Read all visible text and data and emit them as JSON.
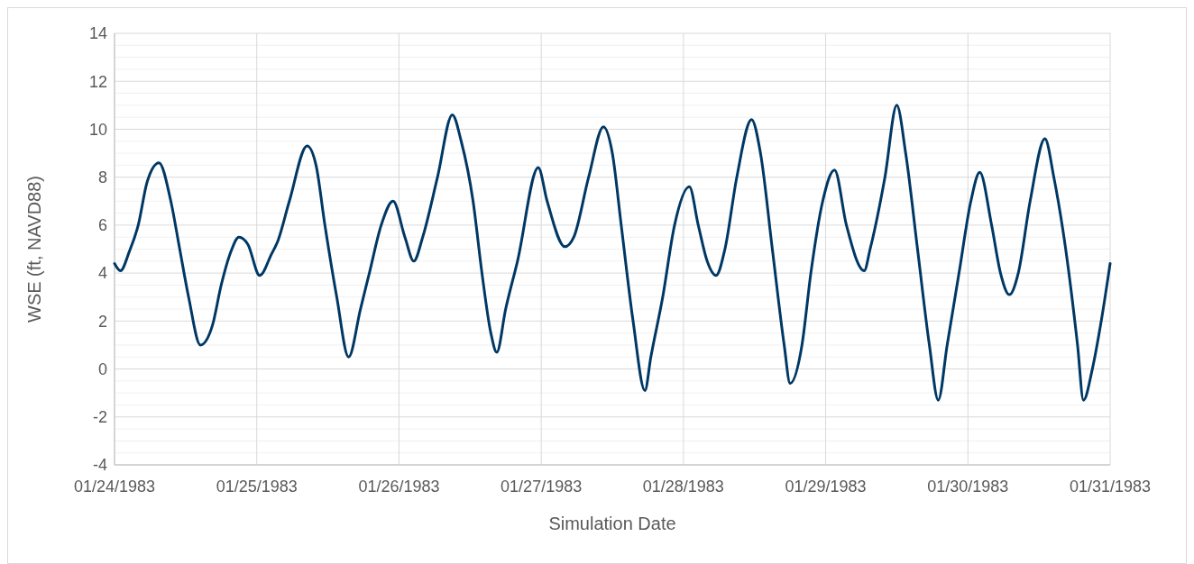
{
  "chart_data": {
    "type": "line",
    "xlabel": "Simulation Date",
    "ylabel": "WSE (ft, NAVD88)",
    "x": [
      "1983-01-24T00:00",
      "1983-01-24T01:00",
      "1983-01-24T02:30",
      "1983-01-24T04:00",
      "1983-01-24T05:30",
      "1983-01-24T07:30",
      "1983-01-24T09:30",
      "1983-01-24T11:00",
      "1983-01-24T12:30",
      "1983-01-24T14:30",
      "1983-01-24T16:30",
      "1983-01-24T18:00",
      "1983-01-24T19:30",
      "1983-01-24T21:00",
      "1983-01-24T22:30",
      "1983-01-25T00:30",
      "1983-01-25T02:30",
      "1983-01-25T03:30",
      "1983-01-25T05:30",
      "1983-01-25T08:30",
      "1983-01-25T10:00",
      "1983-01-25T11:30",
      "1983-01-25T13:30",
      "1983-01-25T15:30",
      "1983-01-25T17:30",
      "1983-01-25T19:00",
      "1983-01-25T21:00",
      "1983-01-25T23:00",
      "1983-01-26T01:00",
      "1983-01-26T02:30",
      "1983-01-26T04:00",
      "1983-01-26T06:30",
      "1983-01-26T09:00",
      "1983-01-26T10:30",
      "1983-01-26T12:30",
      "1983-01-26T14:00",
      "1983-01-26T15:30",
      "1983-01-26T16:30",
      "1983-01-26T18:00",
      "1983-01-26T20:00",
      "1983-01-26T23:30",
      "1983-01-27T01:00",
      "1983-01-27T04:00",
      "1983-01-27T05:30",
      "1983-01-27T08:00",
      "1983-01-27T10:30",
      "1983-01-27T12:00",
      "1983-01-27T13:30",
      "1983-01-27T15:30",
      "1983-01-27T17:30",
      "1983-01-27T18:30",
      "1983-01-27T20:30",
      "1983-01-27T22:30",
      "1983-01-28T01:00",
      "1983-01-28T02:30",
      "1983-01-28T04:00",
      "1983-01-28T05:30",
      "1983-01-28T07:00",
      "1983-01-28T09:00",
      "1983-01-28T11:30",
      "1983-01-28T13:00",
      "1983-01-28T15:00",
      "1983-01-28T17:00",
      "1983-01-28T18:00",
      "1983-01-28T20:00",
      "1983-01-28T21:30",
      "1983-01-28T23:30",
      "1983-01-29T01:30",
      "1983-01-29T03:30",
      "1983-01-29T06:30",
      "1983-01-29T07:30",
      "1983-01-29T10:00",
      "1983-01-29T12:00",
      "1983-01-29T13:30",
      "1983-01-29T15:30",
      "1983-01-29T17:30",
      "1983-01-29T19:00",
      "1983-01-29T20:30",
      "1983-01-29T22:30",
      "1983-01-30T00:30",
      "1983-01-30T02:00",
      "1983-01-30T04:00",
      "1983-01-30T05:30",
      "1983-01-30T07:00",
      "1983-01-30T08:30",
      "1983-01-30T10:30",
      "1983-01-30T13:00",
      "1983-01-30T14:30",
      "1983-01-30T16:30",
      "1983-01-30T18:30",
      "1983-01-30T19:30",
      "1983-01-30T21:00",
      "1983-01-30T22:30",
      "1983-01-31T00:00"
    ],
    "series": [
      {
        "color": "#003865",
        "values": [
          4.4,
          4.1,
          4.9,
          6.0,
          7.8,
          8.6,
          7.0,
          5.0,
          3.0,
          1.0,
          1.8,
          3.5,
          4.8,
          5.5,
          5.2,
          3.9,
          4.8,
          5.3,
          7.0,
          9.3,
          8.5,
          6.0,
          3.0,
          0.5,
          2.5,
          4.0,
          6.0,
          7.0,
          5.5,
          4.5,
          5.5,
          8.0,
          10.6,
          9.5,
          7.0,
          4.0,
          1.5,
          0.7,
          2.5,
          4.5,
          8.4,
          7.0,
          5.1,
          5.5,
          8.0,
          10.1,
          9.0,
          6.0,
          2.0,
          -0.9,
          0.5,
          3.0,
          6.0,
          7.6,
          6.0,
          4.5,
          3.9,
          5.0,
          8.0,
          10.4,
          9.0,
          5.0,
          1.0,
          -0.6,
          1.0,
          4.0,
          7.0,
          8.3,
          6.0,
          4.1,
          5.0,
          8.0,
          11.0,
          9.0,
          5.0,
          1.0,
          -1.3,
          1.0,
          4.0,
          7.0,
          8.2,
          6.0,
          4.0,
          3.1,
          4.0,
          7.0,
          9.6,
          8.0,
          5.0,
          1.0,
          -1.3,
          0.0,
          2.0,
          4.4
        ]
      }
    ],
    "xlim": [
      "1983-01-24",
      "1983-01-31"
    ],
    "xticks": [
      {
        "value": "1983-01-24",
        "label": "01/24/1983"
      },
      {
        "value": "1983-01-25",
        "label": "01/25/1983"
      },
      {
        "value": "1983-01-26",
        "label": "01/26/1983"
      },
      {
        "value": "1983-01-27",
        "label": "01/27/1983"
      },
      {
        "value": "1983-01-28",
        "label": "01/28/1983"
      },
      {
        "value": "1983-01-29",
        "label": "01/29/1983"
      },
      {
        "value": "1983-01-30",
        "label": "01/30/1983"
      },
      {
        "value": "1983-01-31",
        "label": "01/31/1983"
      }
    ],
    "ylim": [
      -4,
      14
    ],
    "yticks": [
      -4,
      -2,
      0,
      2,
      4,
      6,
      8,
      10,
      12,
      14
    ],
    "grid": true,
    "line_style": "solid",
    "marker": "none"
  }
}
